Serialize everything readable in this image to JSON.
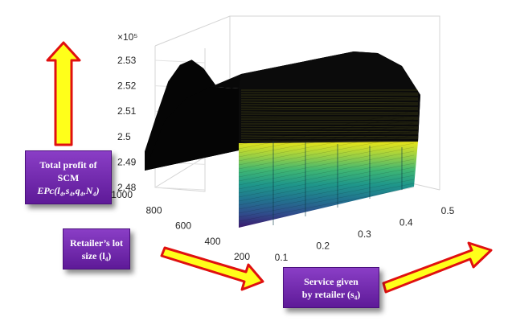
{
  "chart_data": {
    "type": "surface3d",
    "exponent_label": "×10⁵",
    "z_axis": {
      "ticks": [
        "2.48",
        "2.49",
        "2.5",
        "2.51",
        "2.52",
        "2.53"
      ],
      "range": [
        2.48,
        2.53
      ],
      "multiplier": 100000
    },
    "y_axis": {
      "ticks": [
        "200",
        "400",
        "600",
        "800",
        "1000"
      ],
      "range": [
        200,
        1000
      ]
    },
    "x_axis": {
      "ticks": [
        "0.1",
        "0.2",
        "0.3",
        "0.4",
        "0.5"
      ],
      "range": [
        0.1,
        0.5
      ]
    },
    "surface": {
      "description_free": true,
      "l4": [
        200,
        300,
        400,
        500,
        600,
        700,
        800,
        900,
        1000
      ],
      "profit_by_l4": [
        248000,
        249800,
        251200,
        252200,
        252800,
        252700,
        252000,
        250400,
        248700
      ],
      "s4_range": [
        0.1,
        0.5
      ],
      "profit_flat_along_s4": true
    },
    "grid": true,
    "colormap": [
      "#3b1a6e",
      "#2f4e8c",
      "#21758f",
      "#1f978a",
      "#3fb673",
      "#9bd043",
      "#e8e419"
    ]
  },
  "labels": {
    "profit_line1": "Total profit of",
    "profit_line2": "SCM",
    "profit_math": "EPᴄ(l₄,s₄,q₄,N₄)",
    "lot_line1": "Retailer’s lot",
    "lot_line2": "size (l₄)",
    "service_line1": "Service given",
    "service_line2": "by retailer (s₄)"
  },
  "colors": {
    "arrow_fill": "#ffff1a",
    "arrow_stroke": "#e01010",
    "callout": "#7a2fb8"
  }
}
